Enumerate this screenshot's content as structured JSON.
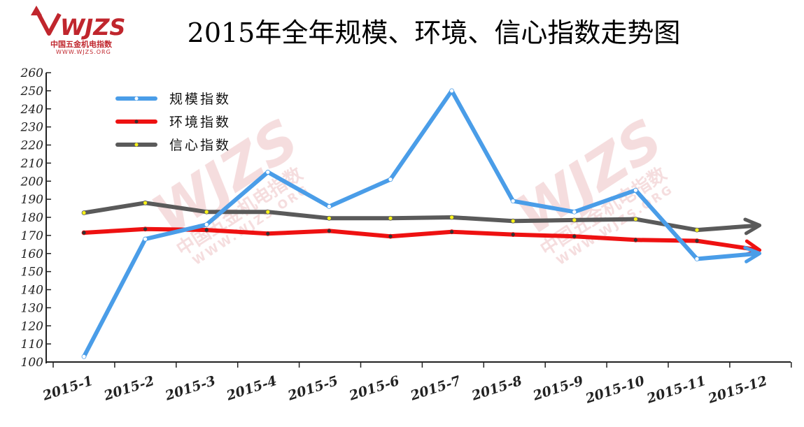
{
  "logo": {
    "mark": "WJZS",
    "cn": "中国五金机电指数",
    "url": "WWW.WJZS.ORG",
    "color": "#c0262d"
  },
  "watermark": {
    "mark": "WJZS",
    "cn": "中国五金机电指数",
    "url": "WWW.WJZS.ORG"
  },
  "chart_data": {
    "type": "line",
    "title": "2015年全年规模、环境、信心指数走势图",
    "categories": [
      "2015-1",
      "2015-2",
      "2015-3",
      "2015-4",
      "2015-5",
      "2015-6",
      "2015-7",
      "2015-8",
      "2015-9",
      "2015-10",
      "2015-11",
      "2015-12"
    ],
    "ylim": [
      100,
      260
    ],
    "yticks": [
      100,
      110,
      120,
      130,
      140,
      150,
      160,
      170,
      180,
      190,
      200,
      210,
      220,
      230,
      240,
      250,
      260
    ],
    "legend_position": "top-left",
    "grid": false,
    "series": [
      {
        "name": "规模指数",
        "color": "#4a9de8",
        "marker_color": "#ffffff",
        "values": [
          103,
          168,
          176,
          205,
          186,
          201,
          250,
          189,
          183,
          195,
          157,
          160
        ]
      },
      {
        "name": "环境指数",
        "color": "#ee1111",
        "marker_color": "#333333",
        "values": [
          171.5,
          173.5,
          173,
          171,
          172.5,
          169.5,
          172,
          170.5,
          169.5,
          167.5,
          167,
          162
        ]
      },
      {
        "name": "信心指数",
        "color": "#5a5a5a",
        "marker_color": "#f7f21a",
        "values": [
          182.5,
          188,
          183,
          183,
          179.5,
          179.5,
          180,
          178,
          178.5,
          179,
          173,
          175.5
        ]
      }
    ]
  }
}
